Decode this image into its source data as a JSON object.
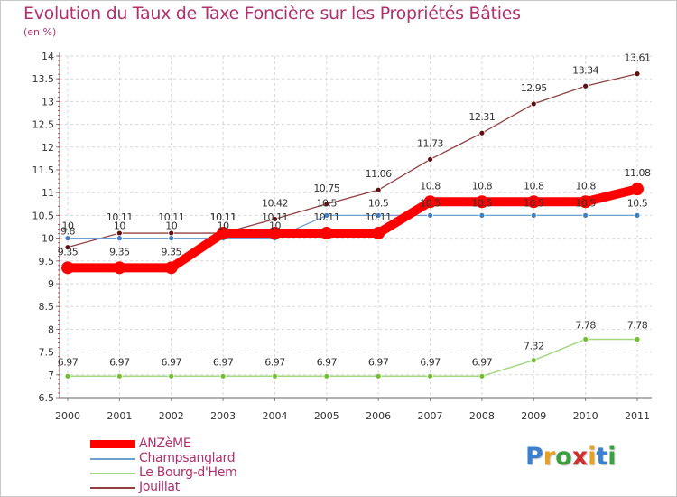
{
  "title": "Evolution du Taux de Taxe Foncière sur les Propriétés Bâties",
  "unit_label": "(en %)",
  "logo": {
    "letters": [
      "P",
      "r",
      "o",
      "x",
      "i",
      "t",
      "i"
    ],
    "colors": [
      "#3a7fd0",
      "#e8a020",
      "#3aa040",
      "#d03030",
      "#e8a020",
      "#3a7fd0",
      "#3aa040"
    ]
  },
  "chart_data": {
    "type": "line",
    "title": "Evolution du Taux de Taxe Foncière sur les Propriétés Bâties",
    "ylabel": "(en %)",
    "xlabel": "",
    "ylim": [
      6.5,
      14
    ],
    "y_ticks": [
      "6.5",
      "7",
      "7.5",
      "8",
      "8.5",
      "9",
      "9.5",
      "10",
      "10.5",
      "11",
      "11.5",
      "12",
      "12.5",
      "13",
      "13.5",
      "14"
    ],
    "categories": [
      "2000",
      "2001",
      "2002",
      "2003",
      "2004",
      "2005",
      "2006",
      "2007",
      "2008",
      "2009",
      "2010",
      "2011"
    ],
    "grid": true,
    "legend_position": "bottom-left",
    "series": [
      {
        "name": "ANZèME",
        "color": "#ff0000",
        "values": [
          9.35,
          9.35,
          9.35,
          10.11,
          10.11,
          10.11,
          10.11,
          10.8,
          10.8,
          10.8,
          10.8,
          11.08
        ],
        "labels": [
          "9.35",
          "9.35",
          "9.35",
          "10.11",
          "10.11",
          "10.11",
          "10.11",
          "10.8",
          "10.8",
          "10.8",
          "10.8",
          "11.08"
        ]
      },
      {
        "name": "Champsanglard",
        "color": "#6ea0d0",
        "values": [
          10,
          10,
          10,
          10,
          10,
          10.5,
          10.5,
          10.5,
          10.5,
          10.5,
          10.5,
          10.5
        ],
        "labels": [
          "10",
          "10",
          "10",
          "10",
          "10",
          "10.5",
          "10.5",
          "10.5",
          "10.5",
          "10.5",
          "10.5",
          "10.5"
        ]
      },
      {
        "name": "Le Bourg-d'Hem",
        "color": "#a0d880",
        "values": [
          6.97,
          6.97,
          6.97,
          6.97,
          6.97,
          6.97,
          6.97,
          6.97,
          6.97,
          7.32,
          7.78,
          7.78
        ],
        "labels": [
          "6.97",
          "6.97",
          "6.97",
          "6.97",
          "6.97",
          "6.97",
          "6.97",
          "6.97",
          "6.97",
          "7.32",
          "7.78",
          "7.78"
        ]
      },
      {
        "name": "Jouillat",
        "color": "#904040",
        "values": [
          9.8,
          10.11,
          10.11,
          10.11,
          10.42,
          10.75,
          11.06,
          11.73,
          12.31,
          12.95,
          13.34,
          13.61
        ],
        "labels": [
          "9.8",
          "10.11",
          "10.11",
          "10.11",
          "10.42",
          "10.75",
          "11.06",
          "11.73",
          "12.31",
          "12.95",
          "13.34",
          "13.61"
        ]
      }
    ]
  }
}
